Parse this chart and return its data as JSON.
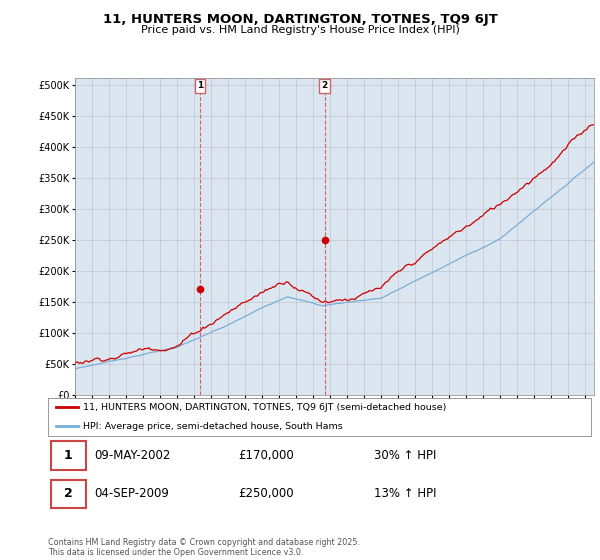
{
  "title1": "11, HUNTERS MOON, DARTINGTON, TOTNES, TQ9 6JT",
  "title2": "Price paid vs. HM Land Registry's House Price Index (HPI)",
  "legend1": "11, HUNTERS MOON, DARTINGTON, TOTNES, TQ9 6JT (semi-detached house)",
  "legend2": "HPI: Average price, semi-detached house, South Hams",
  "transaction1_date": "09-MAY-2002",
  "transaction1_price": 170000,
  "transaction1_hpi": "30% ↑ HPI",
  "transaction2_date": "04-SEP-2009",
  "transaction2_price": 250000,
  "transaction2_hpi": "13% ↑ HPI",
  "yticks": [
    0,
    50000,
    100000,
    150000,
    200000,
    250000,
    300000,
    350000,
    400000,
    450000,
    500000
  ],
  "ylim": [
    0,
    510000
  ],
  "xlim_left": 1995.0,
  "xlim_right": 2025.5,
  "color_red": "#cc0000",
  "color_blue": "#7aaed6",
  "color_vline": "#cc6666",
  "bg_color": "#dce6f0",
  "marker1_x": 2002.35,
  "marker2_x": 2009.67,
  "footer": "Contains HM Land Registry data © Crown copyright and database right 2025.\nThis data is licensed under the Open Government Licence v3.0."
}
